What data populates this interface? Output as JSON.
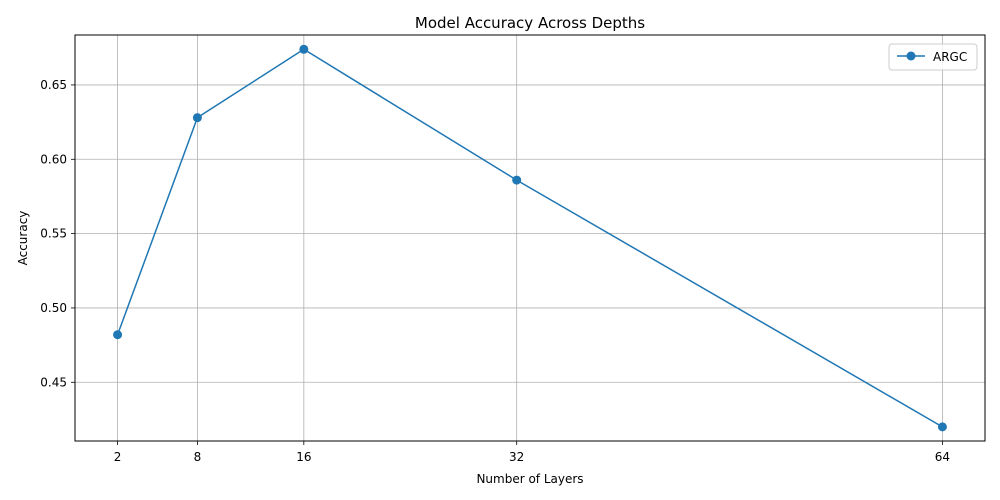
{
  "chart_data": {
    "type": "line",
    "title": "Model Accuracy Across Depths",
    "xlabel": "Number of Layers",
    "ylabel": "Accuracy",
    "x": [
      2,
      8,
      16,
      32,
      64
    ],
    "x_ticks": [
      "2",
      "8",
      "16",
      "32",
      "64"
    ],
    "y_ticks": [
      "0.45",
      "0.50",
      "0.55",
      "0.60",
      "0.65"
    ],
    "y_tick_values": [
      0.45,
      0.5,
      0.55,
      0.6,
      0.65
    ],
    "xlim": [
      -1.2,
      67.2
    ],
    "ylim": [
      0.4105,
      0.6836
    ],
    "grid": true,
    "legend_position": "top-right",
    "series": [
      {
        "name": "ARGC",
        "values": [
          0.482,
          0.628,
          0.674,
          0.586,
          0.42
        ],
        "color": "#1f77b4",
        "marker": "circle"
      }
    ]
  }
}
